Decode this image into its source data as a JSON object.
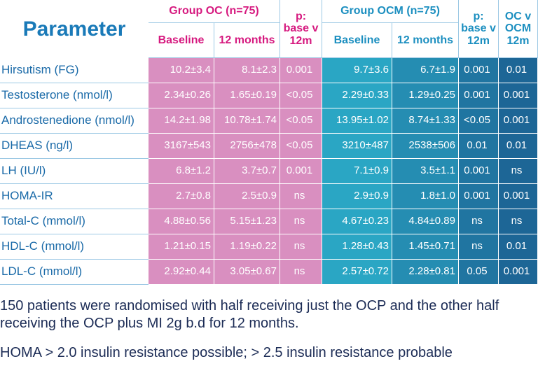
{
  "header": {
    "title": "Parameter",
    "group_oc": "Group OC (n=75)",
    "group_ocm": "Group OCM (n=75)",
    "p_oc": [
      "p:",
      "base v",
      "12m"
    ],
    "p_ocm": [
      "p:",
      "base v",
      "12m"
    ],
    "oc_v_ocm": [
      "OC v",
      "OCM",
      "12m"
    ],
    "subcolumns": [
      "Baseline",
      "12 months",
      "Baseline",
      "12 months"
    ]
  },
  "table": {
    "rows": [
      [
        "Hirsutism (FG)",
        "10.2±3.4",
        "8.1±2.3",
        "0.001",
        "9.7±3.6",
        "6.7±1.9",
        "0.001",
        "0.01"
      ],
      [
        "Testosterone (nmol/l)",
        "2.34±0.26",
        "1.65±0.19",
        "<0.05",
        "2.29±0.33",
        "1.29±0.25",
        "0.001",
        "0.001"
      ],
      [
        "Androstenedione (nmol/l)",
        "14.2±1.98",
        "10.78±1.74",
        "<0.05",
        "13.95±1.02",
        "8.74±1.33",
        "<0.05",
        "0.001"
      ],
      [
        "DHEAS (ng/l)",
        "3167±543",
        "2756±478",
        "<0.05",
        "3210±487",
        "2538±506",
        "0.01",
        "0.01"
      ],
      [
        "LH (IU/l)",
        "6.8±1.2",
        "3.7±0.7",
        "0.001",
        "7.1±0.9",
        "3.5±1.1",
        "0.001",
        "ns"
      ],
      [
        "HOMA-IR",
        "2.7±0.8",
        "2.5±0.9",
        "ns",
        "2.9±0.9",
        "1.8±1.0",
        "0.001",
        "0.001"
      ],
      [
        "Total-C (mmol/l)",
        "4.88±0.56",
        "5.15±1.23",
        "ns",
        "4.67±0.23",
        "4.84±0.89",
        "ns",
        "ns"
      ],
      [
        "HDL-C (mmol/l)",
        "1.21±0.15",
        "1.19±0.22",
        "ns",
        "1.28±0.43",
        "1.45±0.71",
        "ns",
        "0.01"
      ],
      [
        "LDL-C (mmol/l)",
        "2.92±0.44",
        "3.05±0.67",
        "ns",
        "2.57±0.72",
        "2.28±0.81",
        "0.05",
        "0.001"
      ]
    ]
  },
  "notes": [
    "150 patients were randomised with half receiving just the OCP and the other half receiving the OCP plus MI 2g b.d for 12 months.",
    "HOMA > 2.0 insulin resistance possible; > 2.5 insulin resistance probable"
  ]
}
